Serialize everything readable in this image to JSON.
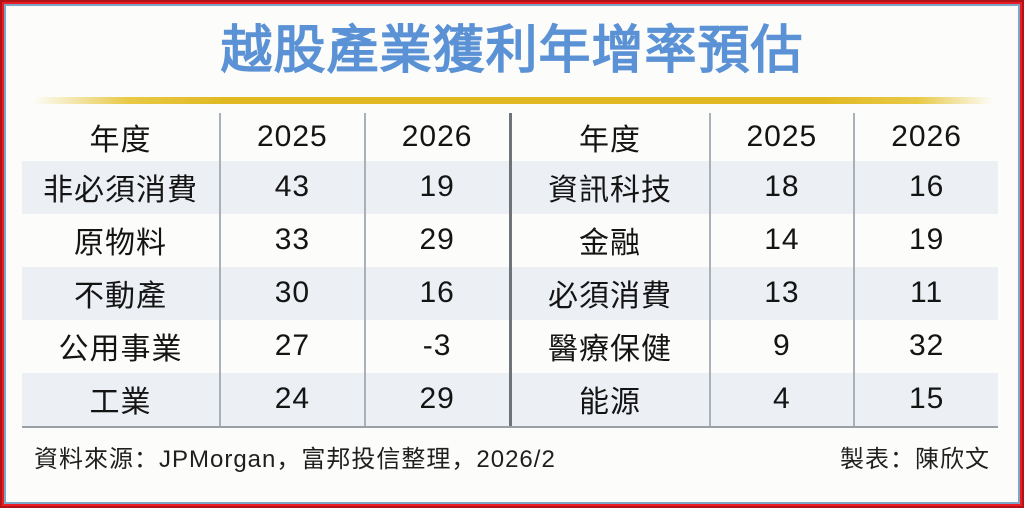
{
  "title": "越股產業獲利年增率預估",
  "colors": {
    "title_blue": "#5b92d5",
    "accent_gold": "#e0b922",
    "frame_red": "#ed1c24",
    "inner_border_blue": "#7ca6c8",
    "row_shade": "#eceff4",
    "column_divider": "#aab0b7",
    "middle_divider": "#6e737a"
  },
  "tables": [
    {
      "headers": [
        "年度",
        "2025",
        "2026"
      ],
      "rows": [
        [
          "非必須消費",
          "43",
          "19"
        ],
        [
          "原物料",
          "33",
          "29"
        ],
        [
          "不動產",
          "30",
          "16"
        ],
        [
          "公用事業",
          "27",
          "-3"
        ],
        [
          "工業",
          "24",
          "29"
        ]
      ]
    },
    {
      "headers": [
        "年度",
        "2025",
        "2026"
      ],
      "rows": [
        [
          "資訊科技",
          "18",
          "16"
        ],
        [
          "金融",
          "14",
          "19"
        ],
        [
          "必須消費",
          "13",
          "11"
        ],
        [
          "醫療保健",
          "9",
          "32"
        ],
        [
          "能源",
          "4",
          "15"
        ]
      ]
    }
  ],
  "footer": {
    "source": "資料來源：JPMorgan，富邦投信整理，2026/2",
    "credit": "製表：陳欣文"
  },
  "chart_data": {
    "type": "table",
    "title": "越股產業獲利年增率預估",
    "columns": [
      "年度",
      "2025",
      "2026"
    ],
    "rows": [
      [
        "非必須消費",
        43,
        19
      ],
      [
        "原物料",
        33,
        29
      ],
      [
        "不動產",
        30,
        16
      ],
      [
        "公用事業",
        27,
        -3
      ],
      [
        "工業",
        24,
        29
      ],
      [
        "資訊科技",
        18,
        16
      ],
      [
        "金融",
        14,
        19
      ],
      [
        "必須消費",
        13,
        11
      ],
      [
        "醫療保健",
        9,
        32
      ],
      [
        "能源",
        4,
        15
      ]
    ],
    "source_note": "資料來源：JPMorgan，富邦投信整理，2026/2",
    "credit_note": "製表：陳欣文"
  }
}
